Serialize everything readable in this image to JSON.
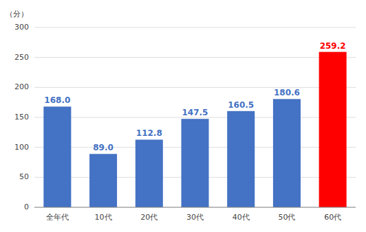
{
  "chart_data": {
    "type": "bar",
    "ylabel": "（分）",
    "categories": [
      "全年代",
      "10代",
      "20代",
      "30代",
      "40代",
      "50代",
      "60代"
    ],
    "values": [
      168.0,
      89.0,
      112.8,
      147.5,
      160.5,
      180.6,
      259.2
    ],
    "value_labels": [
      "168.0",
      "89.0",
      "112.8",
      "147.5",
      "160.5",
      "180.6",
      "259.2"
    ],
    "colors": [
      "#4472c4",
      "#4472c4",
      "#4472c4",
      "#4472c4",
      "#4472c4",
      "#4472c4",
      "#ff0000"
    ],
    "ylim": [
      0,
      300
    ],
    "yticks": [
      0,
      50,
      100,
      150,
      200,
      250,
      300
    ],
    "grid": true,
    "data_labels": true
  }
}
